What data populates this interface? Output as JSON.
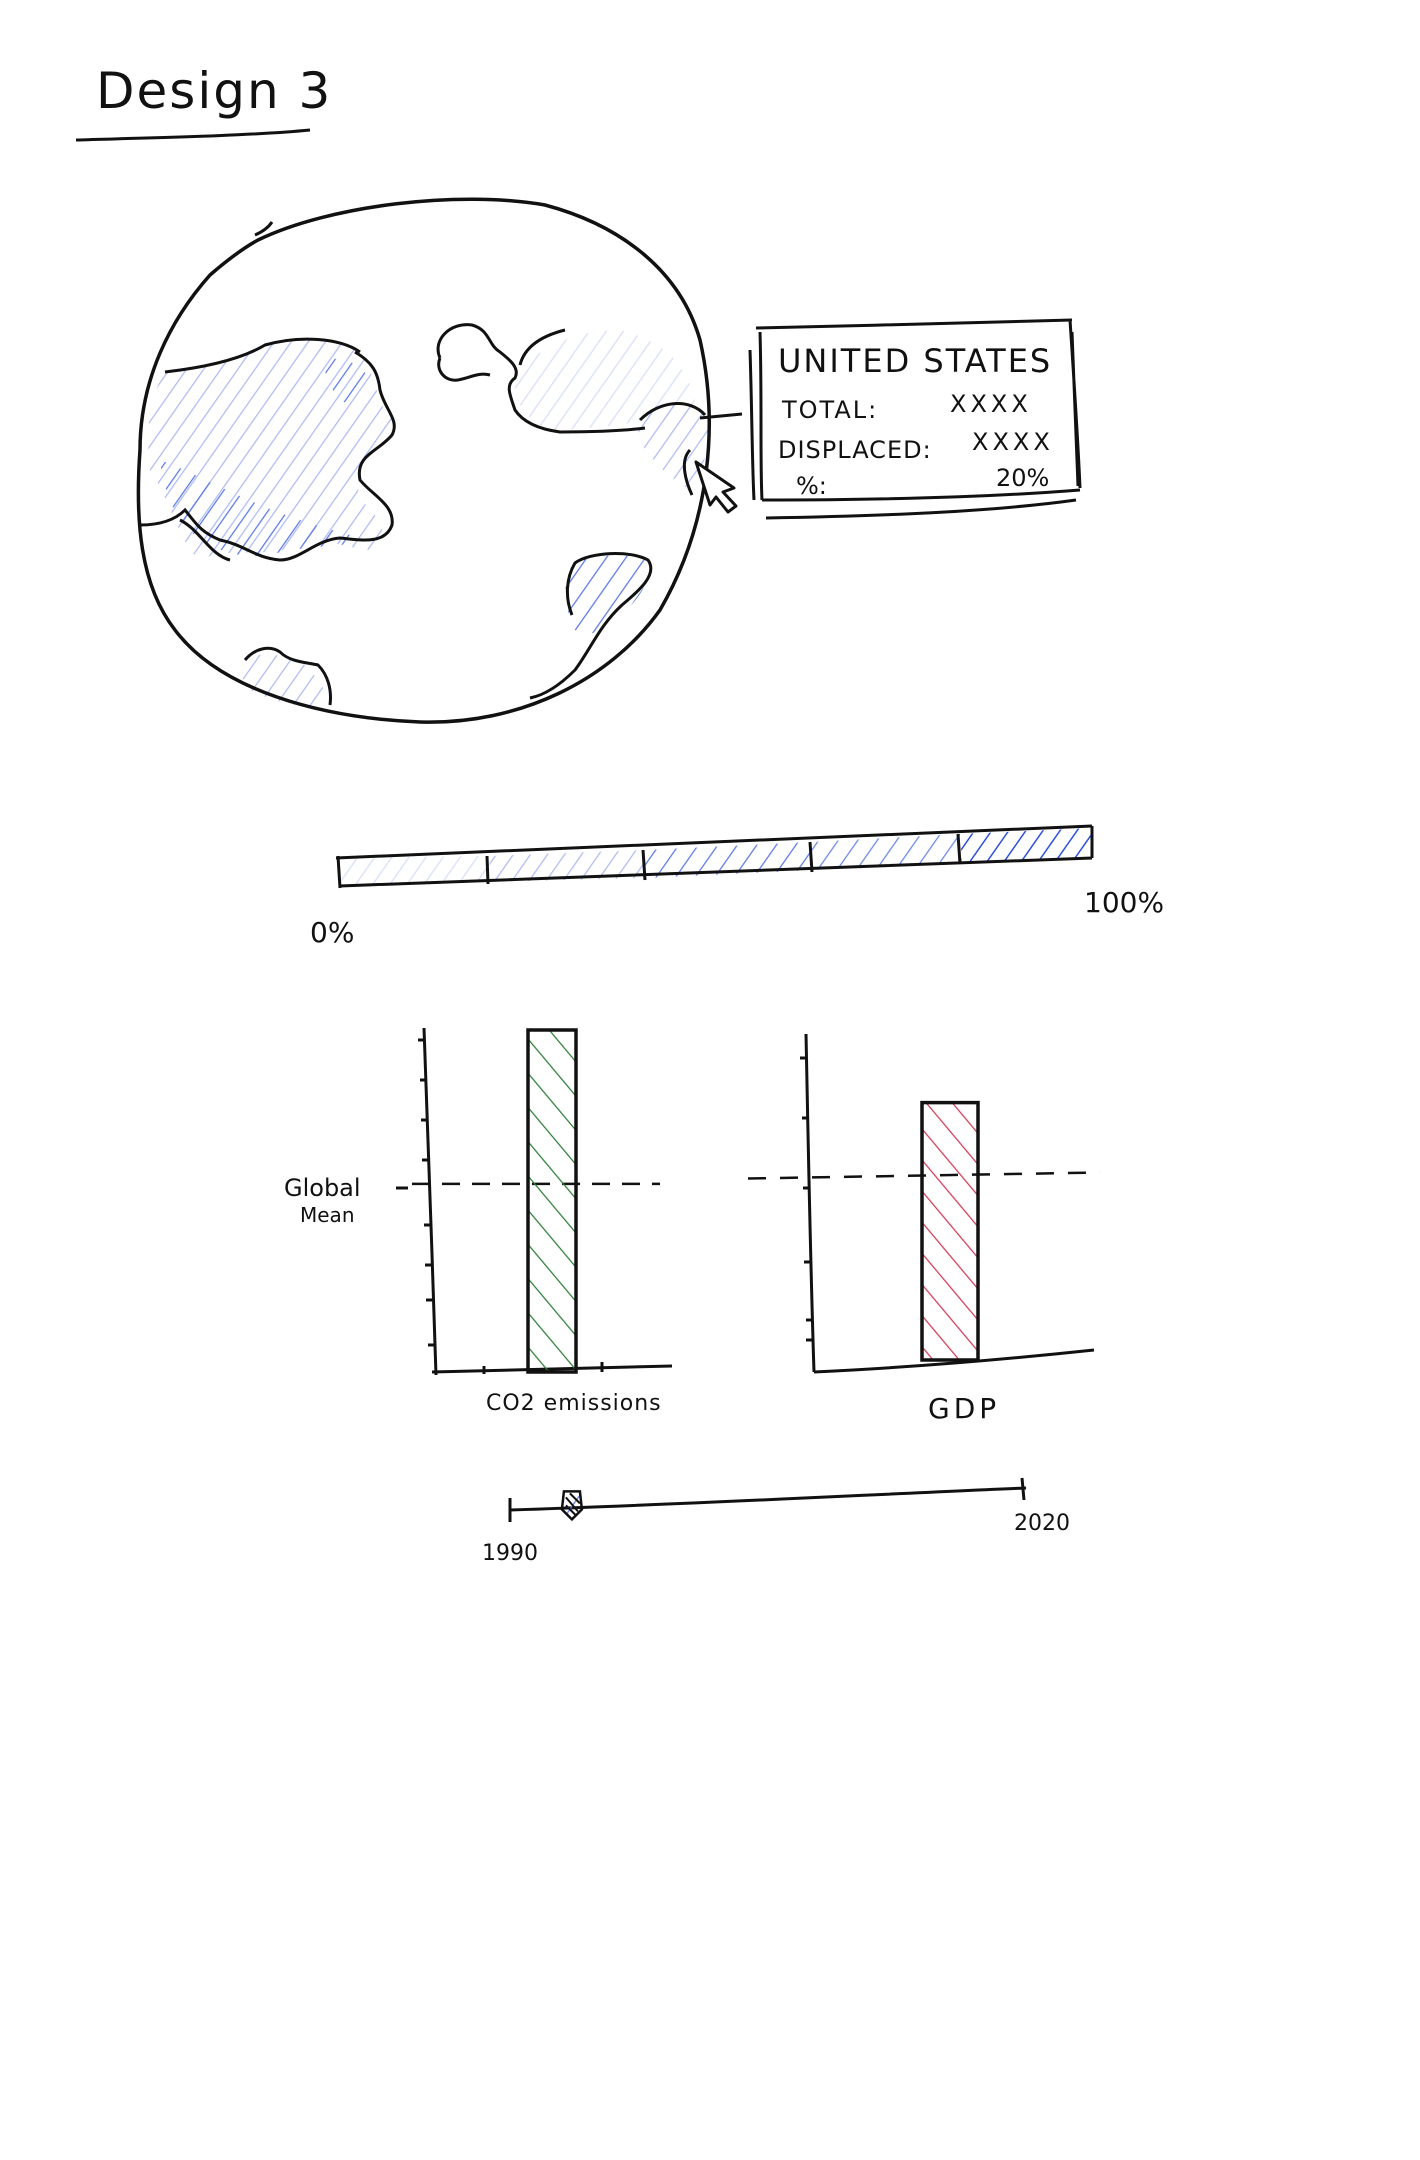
{
  "page_title": "Design 3",
  "colors": {
    "ink": "#111111",
    "blue_dark": "#2d4fe0",
    "blue_mid": "#5a78e8",
    "blue_light": "#aebbf4",
    "blue_faint": "#d8def9",
    "green": "#2e7d3a",
    "red": "#d23a55"
  },
  "globe": {
    "icon": "globe-map-icon",
    "tooltip": {
      "country": "UNITED STATES",
      "rows": [
        {
          "label": "TOTAL:",
          "value": "XXXX"
        },
        {
          "label": "DISPLACED:",
          "value": "XXXX"
        },
        {
          "label": "%:",
          "value": "20%"
        }
      ]
    },
    "cursor_icon": "pointer-cursor-icon"
  },
  "legend": {
    "min_label": "0%",
    "max_label": "100%",
    "segments": 5
  },
  "bar_charts": {
    "mean_label_line1": "Global",
    "mean_label_line2": "Mean",
    "co2": {
      "label": "CO2 emissions",
      "value": 1.0,
      "mean": 0.55
    },
    "gdp": {
      "label": "GDP",
      "value": 0.78,
      "mean": 0.55
    }
  },
  "timeline": {
    "start_label": "1990",
    "end_label": "2020",
    "handle_value": 0.12
  }
}
